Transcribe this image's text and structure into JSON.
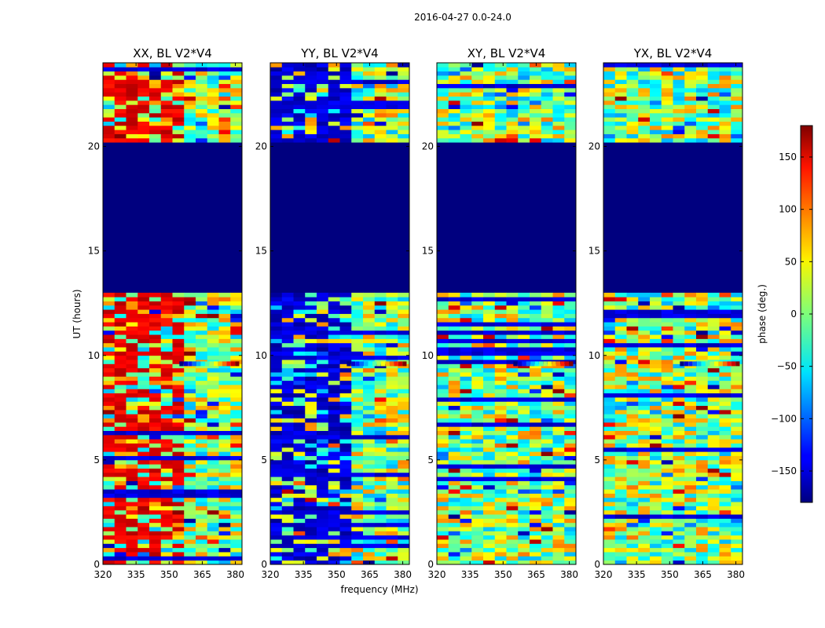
{
  "figure": {
    "suptitle": "2016-04-27 0.0-24.0",
    "xlabel": "frequency (MHz)",
    "ylabel": "UT (hours)",
    "colorbar_label": "phase (deg.)"
  },
  "chart_data": {
    "type": "heatmap",
    "title": "2016-04-27 0.0-24.0",
    "xlabel": "frequency (MHz)",
    "ylabel": "UT (hours)",
    "xlim": [
      320,
      383
    ],
    "ylim": [
      0,
      24
    ],
    "x_ticks": [
      320,
      335,
      350,
      365,
      380
    ],
    "y_ticks": [
      0,
      5,
      10,
      15,
      20
    ],
    "colormap": "jet",
    "colorbar": {
      "label": "phase (deg.)",
      "range": [
        -180,
        180
      ],
      "ticks": [
        -150,
        -100,
        -50,
        0,
        50,
        100,
        150
      ],
      "tick_labels": [
        "−150",
        "−100",
        "−50",
        "0",
        "50",
        "100",
        "150"
      ]
    },
    "panels": [
      {
        "title": "XX, BL V2*V4",
        "polarization": "XX",
        "baseline": "V2*V4",
        "bias": "red"
      },
      {
        "title": "YY, BL V2*V4",
        "polarization": "YY",
        "baseline": "V2*V4",
        "bias": "blue"
      },
      {
        "title": "XY, BL V2*V4",
        "polarization": "XY",
        "baseline": "V2*V4",
        "bias": "none"
      },
      {
        "title": "YX, BL V2*V4",
        "polarization": "YX",
        "baseline": "V2*V4",
        "bias": "none"
      }
    ],
    "flagged_range_hours": [
      13.1,
      20.2
    ],
    "flagged_phase_deg": -180,
    "fringe_feature_hours": 9.6
  }
}
